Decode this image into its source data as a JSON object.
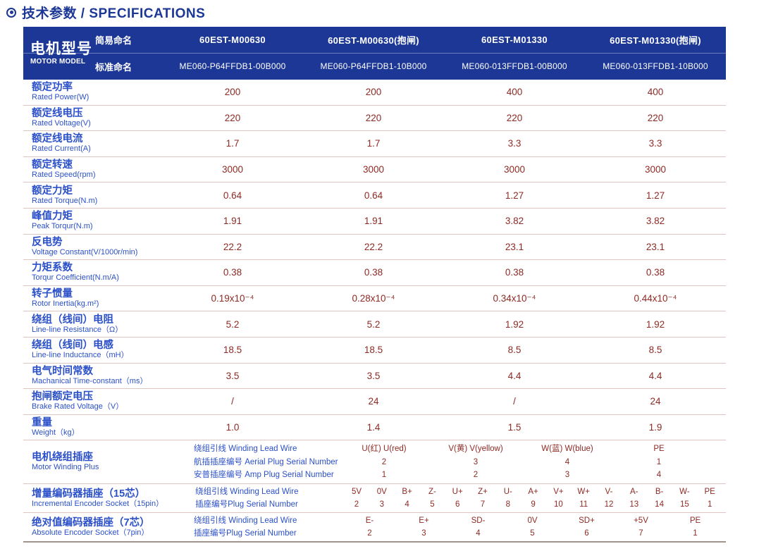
{
  "title": {
    "text": "技术参数 / SPECIFICATIONS"
  },
  "colors": {
    "navy": "#1c3795",
    "label_blue": "#2b50c8",
    "value_maroon": "#8e2a24",
    "separator": "#ddc6c2"
  },
  "header": {
    "model_label_zh": "电机型号",
    "model_label_en": "MOTOR MODEL",
    "simple_label": "简易命名",
    "standard_label": "标准命名",
    "models": [
      {
        "simple": "60EST-M00630",
        "standard": "ME060-P64FFDB1-00B000"
      },
      {
        "simple": "60EST-M00630(抱闸)",
        "standard": "ME060-P64FFDB1-10B000"
      },
      {
        "simple": "60EST-M01330",
        "standard": "ME060-013FFDB1-00B000"
      },
      {
        "simple": "60EST-M01330(抱闸)",
        "standard": "ME060-013FFDB1-10B000"
      }
    ]
  },
  "spec_rows": [
    {
      "zh": "额定功率",
      "en": "Rated Power(W)",
      "values": [
        "200",
        "200",
        "400",
        "400"
      ]
    },
    {
      "zh": "额定线电压",
      "en": "Rated Voltage(V)",
      "values": [
        "220",
        "220",
        "220",
        "220"
      ]
    },
    {
      "zh": "额定线电流",
      "en": "Rated Current(A)",
      "values": [
        "1.7",
        "1.7",
        "3.3",
        "3.3"
      ]
    },
    {
      "zh": "额定转速",
      "en": "Rated Speed(rpm)",
      "values": [
        "3000",
        "3000",
        "3000",
        "3000"
      ]
    },
    {
      "zh": "额定力矩",
      "en": "Rated Torque(N.m)",
      "values": [
        "0.64",
        "0.64",
        "1.27",
        "1.27"
      ]
    },
    {
      "zh": "峰值力矩",
      "en": "Peak Torqur(N.m)",
      "values": [
        "1.91",
        "1.91",
        "3.82",
        "3.82"
      ]
    },
    {
      "zh": "反电势",
      "en": "Voltage Constant(V/1000r/min)",
      "values": [
        "22.2",
        "22.2",
        "23.1",
        "23.1"
      ]
    },
    {
      "zh": "力矩系数",
      "en": "Torqur Coefficient(N.m/A)",
      "values": [
        "0.38",
        "0.38",
        "0.38",
        "0.38"
      ]
    },
    {
      "zh": "转子惯量",
      "en": "Rotor Inertia(kg.m²)",
      "values": [
        "0.19x10⁻⁴",
        "0.28x10⁻⁴",
        "0.34x10⁻⁴",
        "0.44x10⁻⁴"
      ]
    },
    {
      "zh": "绕组（线间）电阻",
      "en": "Line-line Resistance（Ω）",
      "values": [
        "5.2",
        "5.2",
        "1.92",
        "1.92"
      ]
    },
    {
      "zh": "绕组（线间）电感",
      "en": "Line-line Inductance（mH）",
      "values": [
        "18.5",
        "18.5",
        "8.5",
        "8.5"
      ]
    },
    {
      "zh": "电气时间常数",
      "en": "Machanical Time-constant（ms）",
      "values": [
        "3.5",
        "3.5",
        "4.4",
        "4.4"
      ]
    },
    {
      "zh": "抱闸额定电压",
      "en": "Brake Rated Voltage（V）",
      "values": [
        "/",
        "24",
        "/",
        "24"
      ]
    },
    {
      "zh": "重量",
      "en": "Weight（kg）",
      "values": [
        "1.0",
        "1.4",
        "1.5",
        "1.9"
      ]
    }
  ],
  "winding_row": {
    "zh": "电机绕组插座",
    "en": "Motor Winding Plus",
    "sub_labels": [
      "绕组引线 Winding Lead Wire",
      "航插插座编号 Aerial Plug Serial Number",
      "安普插座编号 Amp Plug Serial Number"
    ],
    "columns": [
      {
        "lead": "U(红) U(red)",
        "aerial": "2",
        "amp": "1"
      },
      {
        "lead": "V(黄) V(yellow)",
        "aerial": "3",
        "amp": "2"
      },
      {
        "lead": "W(蓝) W(blue)",
        "aerial": "4",
        "amp": "3"
      },
      {
        "lead": "PE",
        "aerial": "1",
        "amp": "4"
      }
    ]
  },
  "incremental_row": {
    "zh": "增量编码器插座（15芯）",
    "en": "Incremental Encoder Socket（15pin）",
    "sub_labels": [
      "绕组引线 Winding Lead Wire",
      "插座编号Plug Serial Number"
    ],
    "pins": [
      {
        "name": "5V",
        "num": "2"
      },
      {
        "name": "0V",
        "num": "3"
      },
      {
        "name": "B+",
        "num": "4"
      },
      {
        "name": "Z-",
        "num": "5"
      },
      {
        "name": "U+",
        "num": "6"
      },
      {
        "name": "Z+",
        "num": "7"
      },
      {
        "name": "U-",
        "num": "8"
      },
      {
        "name": "A+",
        "num": "9"
      },
      {
        "name": "V+",
        "num": "10"
      },
      {
        "name": "W+",
        "num": "11"
      },
      {
        "name": "V-",
        "num": "12"
      },
      {
        "name": "A-",
        "num": "13"
      },
      {
        "name": "B-",
        "num": "14"
      },
      {
        "name": "W-",
        "num": "15"
      },
      {
        "name": "PE",
        "num": "1"
      }
    ]
  },
  "absolute_row": {
    "zh": "绝对值编码器插座（7芯）",
    "en": "Absolute Encoder Socket（7pin）",
    "sub_labels": [
      "绕组引线 Winding Lead Wire",
      "插座编号Plug Serial Number"
    ],
    "pins": [
      {
        "name": "E-",
        "num": "2"
      },
      {
        "name": "E+",
        "num": "3"
      },
      {
        "name": "SD-",
        "num": "4"
      },
      {
        "name": "0V",
        "num": "5"
      },
      {
        "name": "SD+",
        "num": "6"
      },
      {
        "name": "+5V",
        "num": "7"
      },
      {
        "name": "PE",
        "num": "1"
      }
    ]
  }
}
